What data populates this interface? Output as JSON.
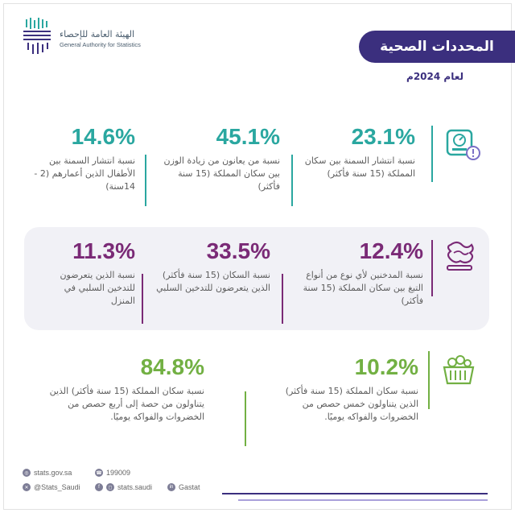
{
  "logo": {
    "name_ar": "الهيئة العامة للإحصاء",
    "name_en": "General Authority for Statistics"
  },
  "header": {
    "title": "المحددات الصحية",
    "year": "لعام 2024م"
  },
  "colors": {
    "banner": "#3b2f7e",
    "teal": "#2aa7a0",
    "purple": "#7a2a76",
    "green": "#72b043"
  },
  "row1": {
    "icon": "scale-weight-icon",
    "stats": [
      {
        "value": "23.1%",
        "desc": "نسبة انتشار السمنة بين سكان المملكة (15 سنة فأكثر)"
      },
      {
        "value": "45.1%",
        "desc": "نسبة من يعانون من زيادة الوزن بين سكان المملكة (15 سنة فأكثر)"
      },
      {
        "value": "14.6%",
        "desc": "نسبة انتشار السمنة بين الأطفال الذين أعمارهم (2 - 14سنة)"
      }
    ]
  },
  "row2": {
    "icon": "smoke-icon",
    "stats": [
      {
        "value": "12.4%",
        "desc": "نسبة المدخنين لأي نوع من أنواع التبغ بين سكان المملكة (15 سنة فأكثر)"
      },
      {
        "value": "33.5%",
        "desc": "نسبة السكان (15 سنة فأكثر) الذين يتعرضون للتدخين السلبي"
      },
      {
        "value": "11.3%",
        "desc": "نسبة الذين يتعرضون للتدخين السلبي في المنزل"
      }
    ]
  },
  "row3": {
    "icon": "vegetable-basket-icon",
    "stats": [
      {
        "value": "10.2%",
        "desc": "نسبة سكان المملكة (15 سنة فأكثر) الذين يتناولون خمس حصص من الخضروات والفواكه يوميًا."
      },
      {
        "value": "84.8%",
        "desc": "نسبة سكان المملكة (15 سنة فأكثر) الذين يتناولون من حصة إلى أربع حصص من الخضروات والفواكه يوميًا."
      }
    ]
  },
  "footer": {
    "website": "stats.gov.sa",
    "phone": "199009",
    "twitter": "@Stats_Saudi",
    "instagram": "stats.saudi",
    "linkedin": "Gastat"
  }
}
